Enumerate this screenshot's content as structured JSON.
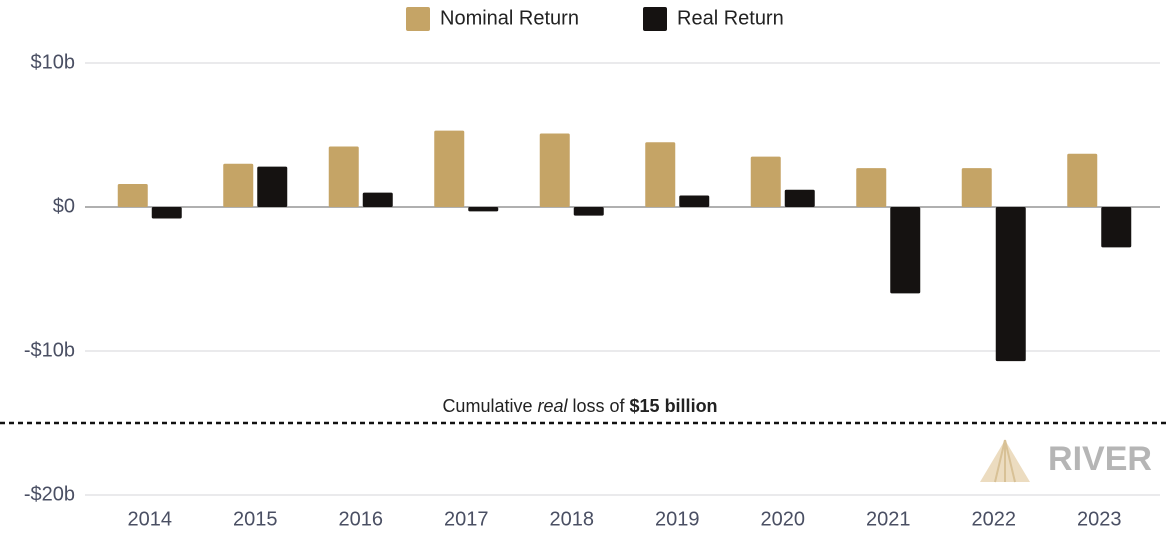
{
  "chart_data": {
    "type": "bar",
    "categories": [
      "2014",
      "2015",
      "2016",
      "2017",
      "2018",
      "2019",
      "2020",
      "2021",
      "2022",
      "2023"
    ],
    "series": [
      {
        "name": "Nominal Return",
        "color": "#c5a466",
        "values": [
          1.6,
          3.0,
          4.2,
          5.3,
          5.1,
          4.5,
          3.5,
          2.7,
          2.7,
          3.7
        ]
      },
      {
        "name": "Real Return",
        "color": "#151211",
        "values": [
          -0.8,
          2.8,
          1.0,
          -0.3,
          -0.6,
          0.8,
          1.2,
          -6.0,
          -10.7,
          -2.8
        ]
      }
    ],
    "ylim": [
      -20,
      10
    ],
    "yticks": [
      {
        "value": -20,
        "label": "-$20b"
      },
      {
        "value": -10,
        "label": "-$10b"
      },
      {
        "value": 0,
        "label": "$0"
      },
      {
        "value": 10,
        "label": "$10b"
      }
    ],
    "grid": true,
    "legend": "top",
    "reference_line": {
      "value": -15,
      "style": "dashed"
    },
    "annotation": [
      "Cumulative ",
      "real",
      " loss of ",
      "$15 billion"
    ],
    "watermark": "RIVER"
  }
}
